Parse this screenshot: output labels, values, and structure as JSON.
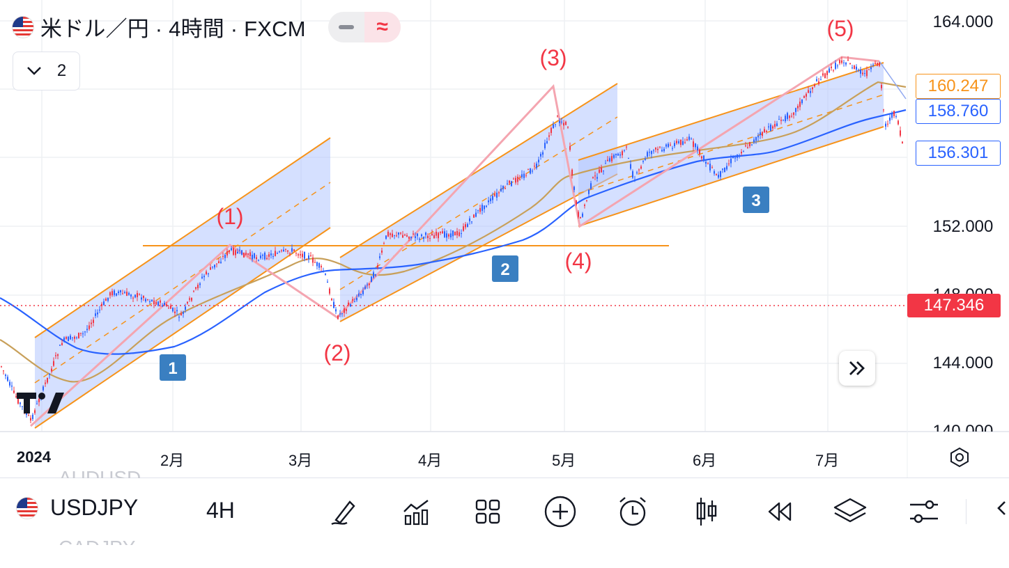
{
  "header": {
    "symbol_title": "米ドル／円 · 4時間 · FXCM",
    "indicator_count": "2",
    "flag_icon": "us-jp-flag-icon"
  },
  "price_axis": {
    "labels": [
      "164.000",
      "152.000",
      "148.000",
      "144.000",
      "140.000"
    ],
    "tags": [
      {
        "value": "160.247",
        "color": "#f7931a"
      },
      {
        "value": "158.760",
        "color": "#2962ff"
      },
      {
        "value": "156.301",
        "color": "#2962ff"
      }
    ],
    "current_price": "147.346"
  },
  "time_axis": {
    "labels": [
      "2024",
      "2月",
      "3月",
      "4月",
      "5月",
      "6月",
      "7月"
    ]
  },
  "wave_labels": [
    "(1)",
    "(2)",
    "(3)",
    "(4)",
    "(5)"
  ],
  "channel_labels": [
    "1",
    "2",
    "3"
  ],
  "colors": {
    "wave": "#f23645",
    "channel": "#f7931a",
    "channel_fill": "#b3c6ff",
    "ma_slow": "#2962ff",
    "ma_mid": "#c8a05a",
    "zigzag": "#f4a5b0",
    "current": "#f23645"
  },
  "bottom_bar": {
    "symbol": "USDJPY",
    "timeframe": "4H",
    "ghost_above": "AUDUSD",
    "ghost_below": "CADJPY",
    "tools": [
      "draw-icon",
      "indicators-icon",
      "templates-icon",
      "add-icon",
      "alert-icon",
      "chart-type-icon",
      "replay-icon",
      "layers-icon",
      "settings-sliders-icon"
    ]
  }
}
